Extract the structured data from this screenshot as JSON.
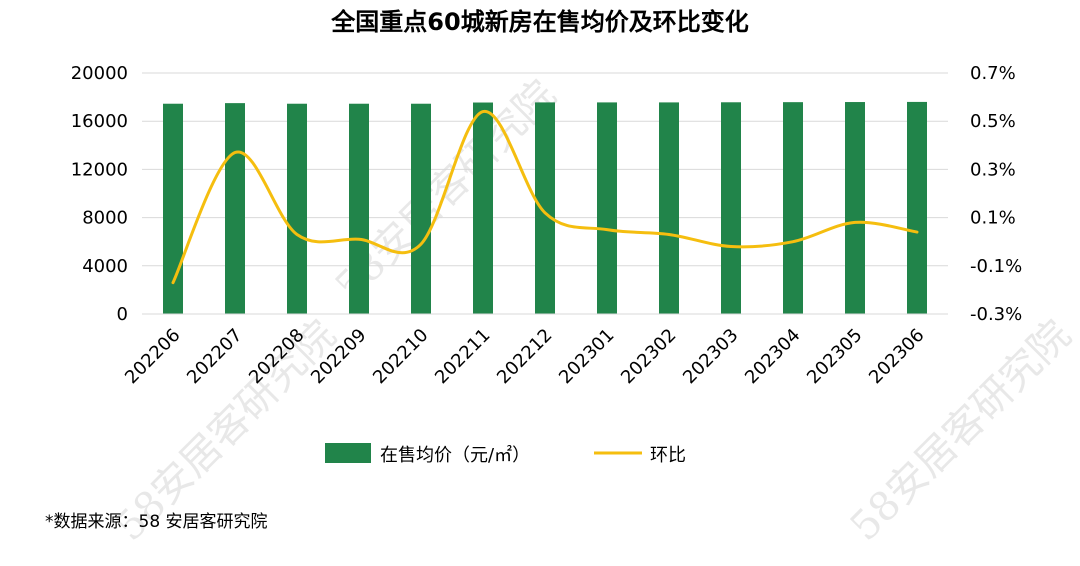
{
  "chart_data": {
    "type": "bar",
    "title": "全国重点60城新房在售均价及环比变化",
    "categories": [
      "202206",
      "202207",
      "202208",
      "202209",
      "202210",
      "202211",
      "202212",
      "202301",
      "202302",
      "202303",
      "202304",
      "202305",
      "202306"
    ],
    "series": [
      {
        "name": "在售均价（元/㎡）",
        "type": "bar",
        "axis": "left",
        "color": "#21844a",
        "values": [
          17450,
          17500,
          17450,
          17450,
          17450,
          17550,
          17560,
          17560,
          17560,
          17570,
          17580,
          17590,
          17600
        ]
      },
      {
        "name": "环比",
        "type": "line",
        "axis": "right",
        "color": "#f5be0f",
        "smooth": true,
        "values": [
          -0.17,
          0.37,
          0.03,
          0.01,
          -0.01,
          0.54,
          0.12,
          0.05,
          0.03,
          -0.02,
          0.0,
          0.08,
          0.04
        ]
      }
    ],
    "yleft": {
      "ylim": [
        0,
        20000
      ],
      "ticks": [
        "0",
        "4000",
        "8000",
        "12000",
        "16000",
        "20000"
      ]
    },
    "yright": {
      "ylim": [
        -0.3,
        0.7
      ],
      "ticks": [
        "-0.3%",
        "-0.1%",
        "0.1%",
        "0.3%",
        "0.5%",
        "0.7%"
      ]
    },
    "grid": true,
    "legend": "bottom"
  },
  "source": "*数据来源：58 安居客研究院",
  "watermark": "58安居客研究院"
}
